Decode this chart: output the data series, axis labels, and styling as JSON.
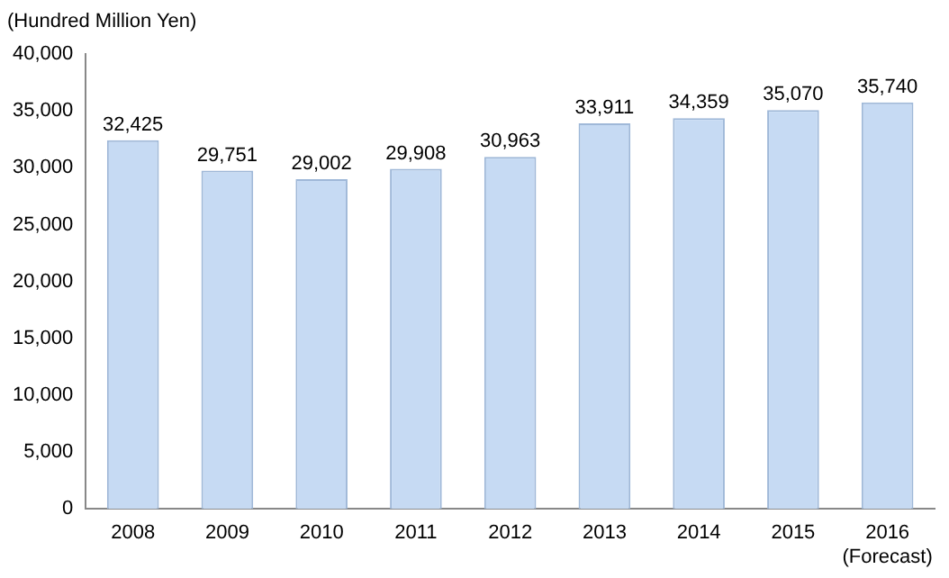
{
  "chart_data": {
    "type": "bar",
    "ylabel": "(Hundred Million Yen)",
    "categories": [
      "2008",
      "2009",
      "2010",
      "2011",
      "2012",
      "2013",
      "2014",
      "2015",
      "2016\n(Forecast)"
    ],
    "values": [
      32425,
      29751,
      29002,
      29908,
      30963,
      33911,
      34359,
      35070,
      35740
    ],
    "color": "#c6daf3",
    "ylim": [
      0,
      40000
    ],
    "yticks": [
      {
        "value": 0,
        "label": "0"
      },
      {
        "value": 5000,
        "label": "5,000"
      },
      {
        "value": 10000,
        "label": "10,000"
      },
      {
        "value": 15000,
        "label": "15,000"
      },
      {
        "value": 20000,
        "label": "20,000"
      },
      {
        "value": 25000,
        "label": "25,000"
      },
      {
        "value": 30000,
        "label": "30,000"
      },
      {
        "value": 35000,
        "label": "35,000"
      },
      {
        "value": 40000,
        "label": "40,000"
      }
    ],
    "value_labels": [
      "32,425",
      "29,751",
      "29,002",
      "29,908",
      "30,963",
      "33,911",
      "34,359",
      "35,070",
      "35,740"
    ],
    "grid": false,
    "legend": false
  }
}
